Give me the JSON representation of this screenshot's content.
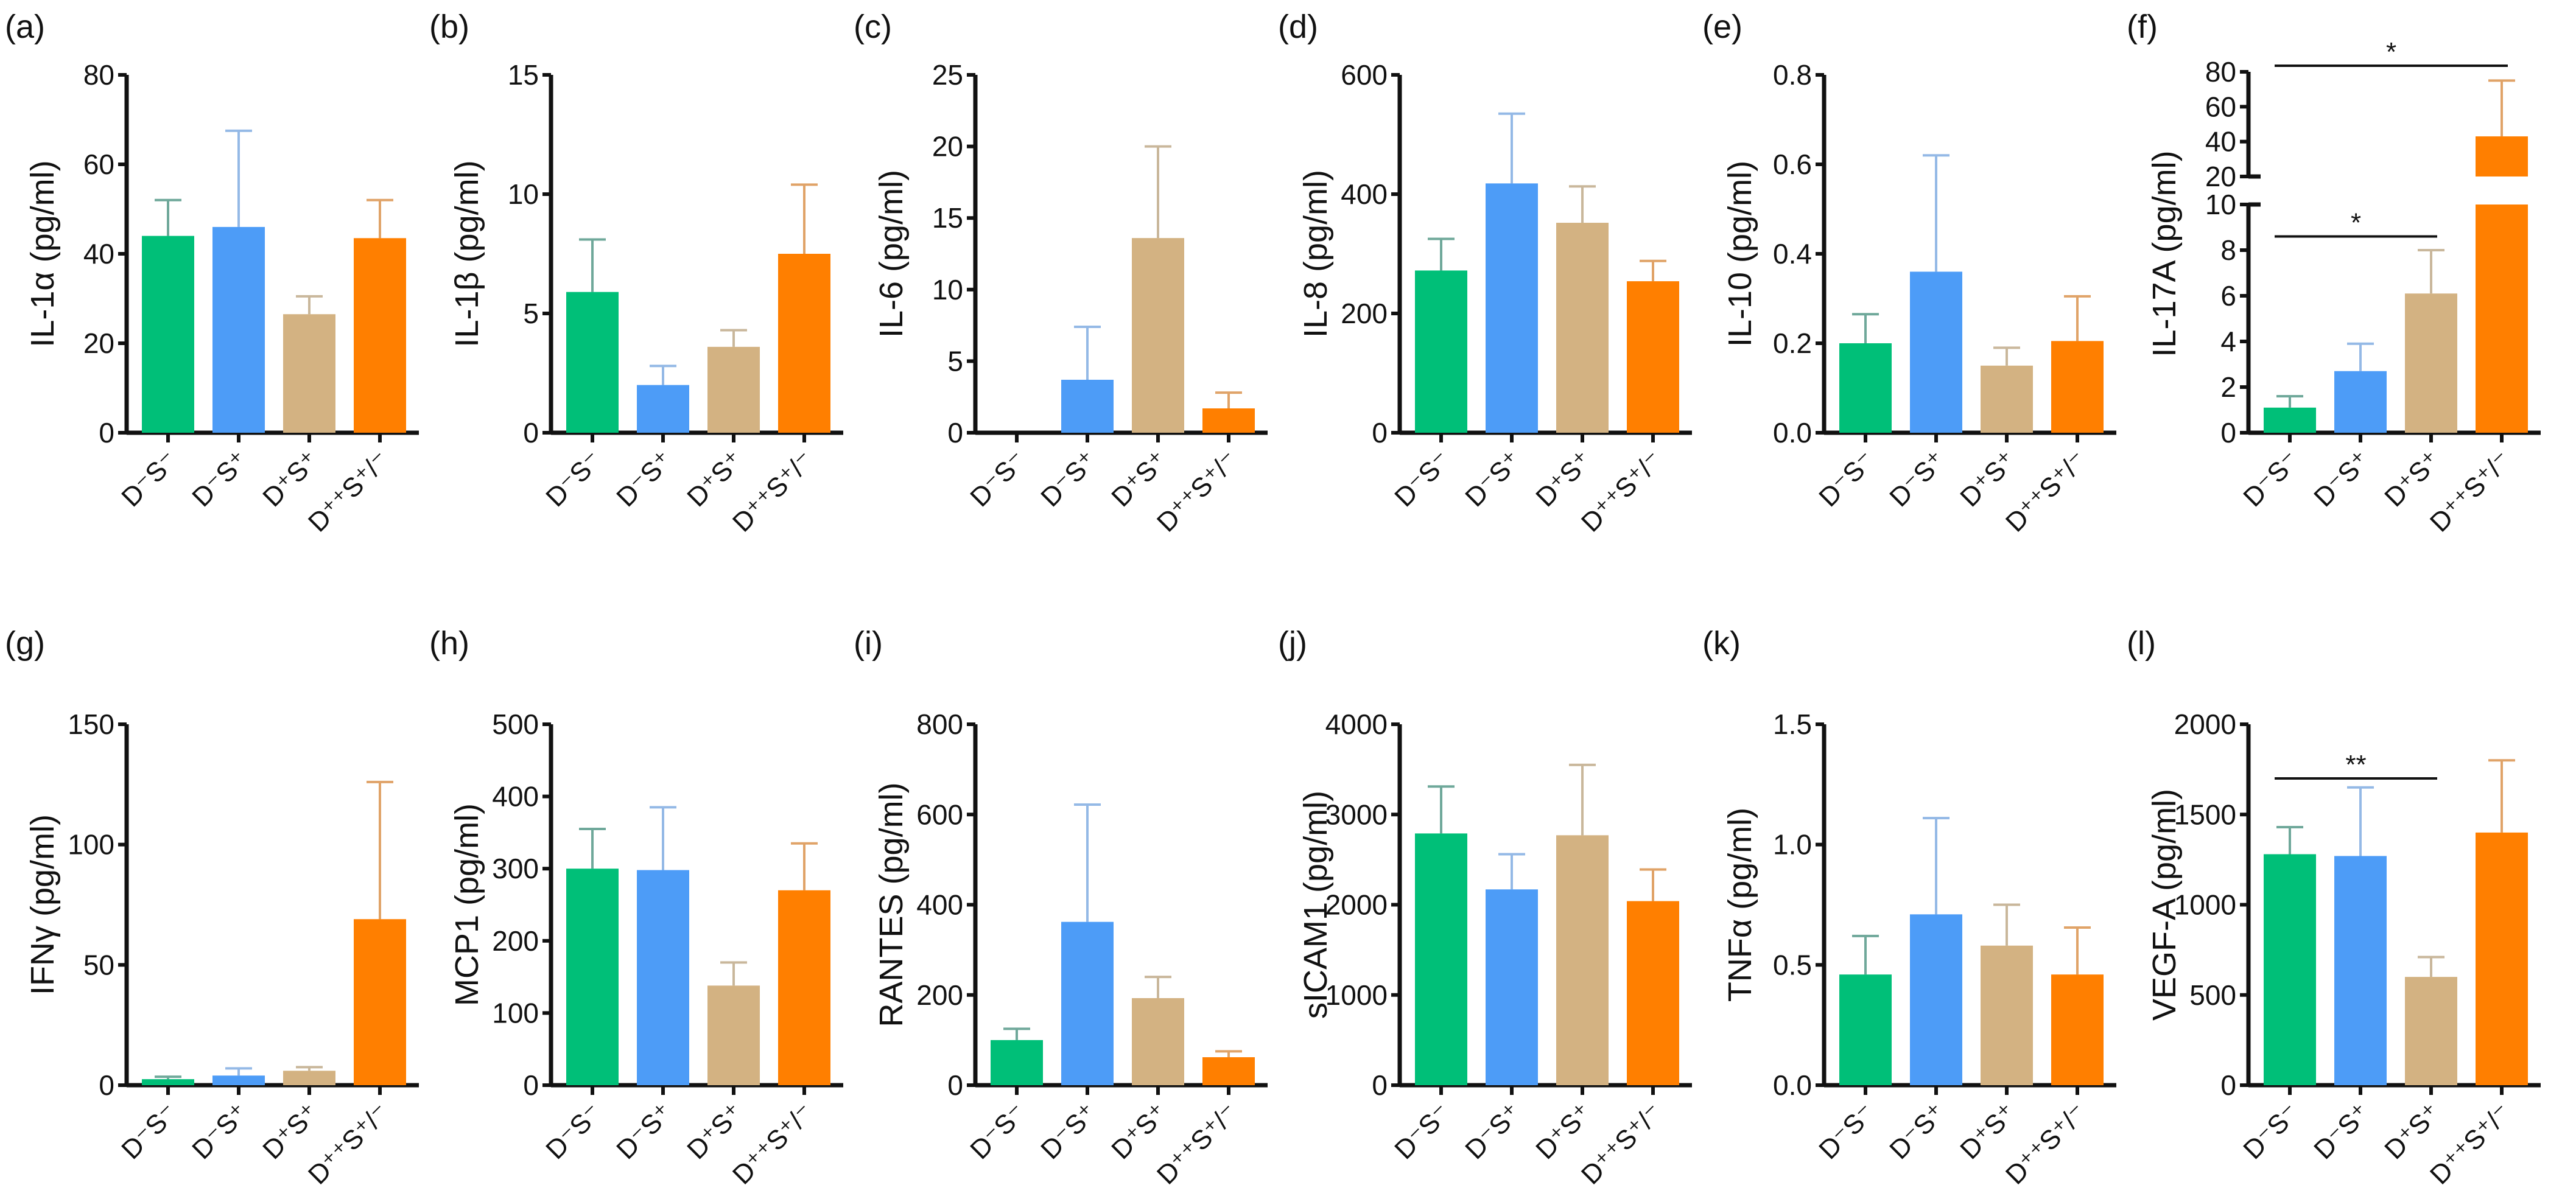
{
  "colors": [
    "#00bf78",
    "#4d9cf7",
    "#d3b282",
    "#ff7f00"
  ],
  "err_colors": [
    "#6fa89a",
    "#94b9e6",
    "#c9b79b",
    "#e0a368"
  ],
  "categories": [
    "D⁻S⁻",
    "D⁻S⁺",
    "D⁺S⁺",
    "D⁺⁺S⁺/⁻"
  ],
  "chart_data": [
    {
      "type": "bar",
      "panel": "(a)",
      "ylabel": "IL-1α (pg/ml)",
      "ylim": [
        0,
        80
      ],
      "ticks": [
        "0",
        "20",
        "40",
        "60",
        "80"
      ],
      "values": [
        44,
        46,
        26.5,
        43.5
      ],
      "err_top": [
        52,
        67.5,
        30.5,
        52
      ],
      "sig": []
    },
    {
      "type": "bar",
      "panel": "(b)",
      "ylabel": "IL-1β (pg/ml)",
      "ylim": [
        0,
        15
      ],
      "ticks": [
        "0",
        "5",
        "10",
        "15"
      ],
      "values": [
        5.9,
        2.0,
        3.6,
        7.5
      ],
      "err_top": [
        8.1,
        2.8,
        4.3,
        10.4
      ],
      "sig": []
    },
    {
      "type": "bar",
      "panel": "(c)",
      "ylabel": "IL-6 (pg/ml)",
      "ylim": [
        0,
        25
      ],
      "ticks": [
        "0",
        "5",
        "10",
        "15",
        "20",
        "25"
      ],
      "values": [
        0,
        3.7,
        13.6,
        1.7
      ],
      "err_top": [
        0,
        7.4,
        20,
        2.8
      ],
      "sig": []
    },
    {
      "type": "bar",
      "panel": "(d)",
      "ylabel": "IL-8 (pg/ml)",
      "ylim": [
        0,
        600
      ],
      "ticks": [
        "0",
        "200",
        "400",
        "600"
      ],
      "values": [
        272,
        418,
        352,
        254
      ],
      "err_top": [
        325,
        535,
        413,
        288
      ],
      "sig": []
    },
    {
      "type": "bar",
      "panel": "(e)",
      "ylabel": "IL-10 (pg/ml)",
      "ylim": [
        0,
        0.8
      ],
      "ticks": [
        "0.0",
        "0.2",
        "0.4",
        "0.6",
        "0.8"
      ],
      "values": [
        0.2,
        0.36,
        0.15,
        0.205
      ],
      "err_top": [
        0.265,
        0.62,
        0.19,
        0.305
      ],
      "sig": []
    },
    {
      "type": "bar",
      "panel": "(f)",
      "ylabel": "IL-17A (pg/ml)",
      "broken": true,
      "ylim": [
        0,
        10
      ],
      "ylim_upper": [
        20,
        80
      ],
      "ticks": [
        "0",
        "2",
        "4",
        "6",
        "8",
        "10"
      ],
      "ticks_upper": [
        "20",
        "40",
        "60",
        "80"
      ],
      "values": [
        1.1,
        2.7,
        6.1,
        43
      ],
      "err_top": [
        1.6,
        3.9,
        8.0,
        75
      ],
      "sig": [
        {
          "from": 0,
          "to": 2,
          "level": 8.6,
          "segment": "lower",
          "label": "*"
        },
        {
          "from": 0,
          "to": 3,
          "level": 86,
          "segment": "upper",
          "label": "*"
        }
      ]
    },
    {
      "type": "bar",
      "panel": "(g)",
      "ylabel": "IFNγ (pg/ml)",
      "ylim": [
        0,
        150
      ],
      "ticks": [
        "0",
        "50",
        "100",
        "150"
      ],
      "values": [
        2.5,
        4,
        6,
        69
      ],
      "err_top": [
        3.5,
        7,
        7.5,
        126
      ],
      "sig": []
    },
    {
      "type": "bar",
      "panel": "(h)",
      "ylabel": "MCP1 (pg/ml)",
      "ylim": [
        0,
        500
      ],
      "ticks": [
        "0",
        "100",
        "200",
        "300",
        "400",
        "500"
      ],
      "values": [
        300,
        298,
        138,
        270
      ],
      "err_top": [
        355,
        385,
        170,
        335
      ],
      "sig": []
    },
    {
      "type": "bar",
      "panel": "(i)",
      "ylabel": "RANTES (pg/ml)",
      "ylim": [
        0,
        800
      ],
      "ticks": [
        "0",
        "200",
        "400",
        "600",
        "800"
      ],
      "values": [
        100,
        362,
        193,
        62
      ],
      "err_top": [
        125,
        622,
        240,
        75
      ],
      "sig": []
    },
    {
      "type": "bar",
      "panel": "(j)",
      "ylabel": "sICAM1 (pg/ml)",
      "ylim": [
        0,
        4000
      ],
      "ticks": [
        "0",
        "1000",
        "2000",
        "3000",
        "4000"
      ],
      "values": [
        2790,
        2170,
        2770,
        2040
      ],
      "err_top": [
        3310,
        2560,
        3550,
        2390
      ],
      "sig": []
    },
    {
      "type": "bar",
      "panel": "(k)",
      "ylabel": "TNFα (pg/ml)",
      "ylim": [
        0,
        1.5
      ],
      "ticks": [
        "0.0",
        "0.5",
        "1.0",
        "1.5"
      ],
      "values": [
        0.46,
        0.71,
        0.58,
        0.46
      ],
      "err_top": [
        0.62,
        1.11,
        0.75,
        0.655
      ],
      "sig": []
    },
    {
      "type": "bar",
      "panel": "(l)",
      "ylabel": "VEGF-A (pg/ml)",
      "ylim": [
        0,
        2000
      ],
      "ticks": [
        "0",
        "500",
        "1000",
        "1500",
        "2000"
      ],
      "values": [
        1280,
        1270,
        600,
        1400
      ],
      "err_top": [
        1430,
        1650,
        710,
        1800
      ],
      "sig": [
        {
          "from": 0,
          "to": 2,
          "level": 1700,
          "segment": "lower",
          "label": "**"
        }
      ]
    }
  ]
}
